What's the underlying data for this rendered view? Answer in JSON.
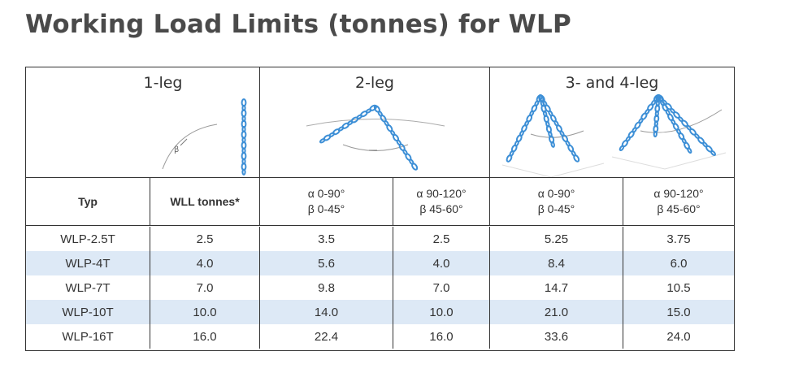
{
  "title": "Working Load Limits (tonnes) for WLP",
  "groups": {
    "one_leg": "1-leg",
    "two_leg": "2-leg",
    "three_four_leg": "3- and 4-leg"
  },
  "columns": {
    "typ": "Typ",
    "wll": "WLL tonnes*",
    "two_leg_a": [
      "α 0-90°",
      "β 0-45°"
    ],
    "two_leg_b": [
      "α 90-120°",
      "β 45-60°"
    ],
    "multi_leg_a": [
      "α 0-90°",
      "β 0-45°"
    ],
    "multi_leg_b": [
      "α 90-120°",
      "β 45-60°"
    ]
  },
  "rows": [
    [
      "WLP-2.5T",
      "2.5",
      "3.5",
      "2.5",
      "5.25",
      "3.75"
    ],
    [
      "WLP-4T",
      "4.0",
      "5.6",
      "4.0",
      "8.4",
      "6.0"
    ],
    [
      "WLP-7T",
      "7.0",
      "9.8",
      "7.0",
      "14.7",
      "10.5"
    ],
    [
      "WLP-10T",
      "10.0",
      "14.0",
      "10.0",
      "21.0",
      "15.0"
    ],
    [
      "WLP-16T",
      "16.0",
      "22.4",
      "16.0",
      "33.6",
      "24.0"
    ]
  ],
  "colors": {
    "chain": "#3d8fd6",
    "stripe": "#dde9f6",
    "border": "#333333"
  },
  "icons": {
    "one_leg": "single-chain-sling-icon",
    "two_leg": "two-leg-chain-sling-icon",
    "three_leg": "three-leg-chain-sling-icon",
    "four_leg": "four-leg-chain-sling-icon"
  }
}
